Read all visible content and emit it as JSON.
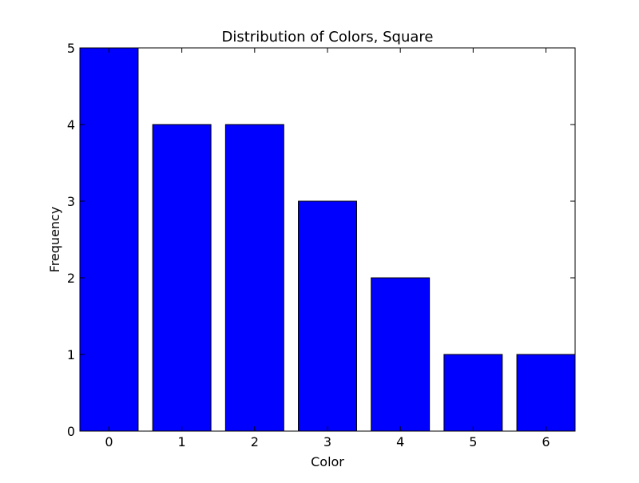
{
  "chart_data": {
    "type": "bar",
    "title": "Distribution of Colors, Square",
    "xlabel": "Color",
    "ylabel": "Frequency",
    "categories": [
      "0",
      "1",
      "2",
      "3",
      "4",
      "5",
      "6"
    ],
    "values": [
      5,
      4,
      4,
      3,
      2,
      1,
      1
    ],
    "ylim": [
      0,
      5
    ],
    "yticks": [
      "0",
      "1",
      "2",
      "3",
      "4",
      "5"
    ],
    "grid": false,
    "legend": false,
    "bar_color": "#0000ff",
    "edge_color": "#000000"
  }
}
